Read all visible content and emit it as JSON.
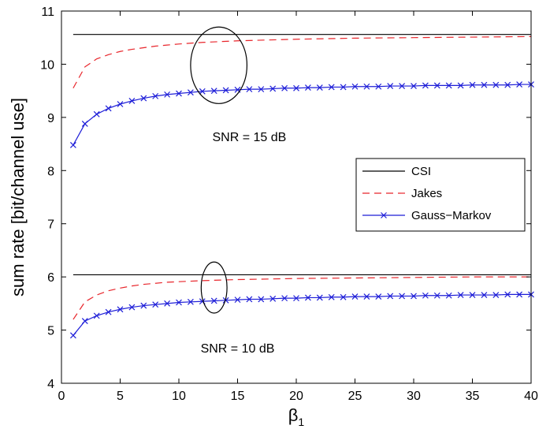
{
  "chart_data": {
    "type": "line",
    "title": "",
    "xlabel": "β",
    "xlabel_sub": "1",
    "ylabel": "sum rate [bit/channel use]",
    "xlim": [
      0,
      40
    ],
    "ylim": [
      4,
      11
    ],
    "xticks": [
      0,
      5,
      10,
      15,
      20,
      25,
      30,
      35,
      40
    ],
    "yticks": [
      4,
      5,
      6,
      7,
      8,
      9,
      10,
      11
    ],
    "grid": false,
    "legend_position": "right",
    "series": [
      {
        "name": "CSI",
        "color": "#000000",
        "style": "solid",
        "marker": "none",
        "x": [
          1,
          40
        ],
        "y": [
          10.56,
          10.56
        ]
      },
      {
        "name": "Jakes",
        "color": "#e8252b",
        "style": "dashed",
        "marker": "none",
        "x": [
          1,
          2,
          3,
          4,
          5,
          6,
          7,
          8,
          9,
          10,
          12,
          15,
          20,
          25,
          30,
          35,
          40
        ],
        "y": [
          9.55,
          9.95,
          10.1,
          10.18,
          10.24,
          10.28,
          10.31,
          10.34,
          10.36,
          10.38,
          10.41,
          10.44,
          10.47,
          10.49,
          10.5,
          10.51,
          10.52
        ]
      },
      {
        "name": "Gauss-Markov",
        "color": "#1f1fd8",
        "style": "solid",
        "marker": "x",
        "x": [
          1,
          2,
          3,
          4,
          5,
          6,
          7,
          8,
          9,
          10,
          11,
          12,
          13,
          14,
          15,
          16,
          17,
          18,
          19,
          20,
          21,
          22,
          23,
          24,
          25,
          26,
          27,
          28,
          29,
          30,
          31,
          32,
          33,
          34,
          35,
          36,
          37,
          38,
          39,
          40
        ],
        "y": [
          8.48,
          8.88,
          9.06,
          9.17,
          9.25,
          9.31,
          9.36,
          9.4,
          9.43,
          9.45,
          9.47,
          9.49,
          9.5,
          9.51,
          9.52,
          9.53,
          9.53,
          9.54,
          9.55,
          9.55,
          9.56,
          9.56,
          9.57,
          9.57,
          9.58,
          9.58,
          9.58,
          9.59,
          9.59,
          9.59,
          9.6,
          9.6,
          9.6,
          9.6,
          9.61,
          9.61,
          9.61,
          9.61,
          9.62,
          9.62
        ]
      },
      {
        "name": "CSI",
        "color": "#000000",
        "style": "solid",
        "marker": "none",
        "legend": false,
        "x": [
          1,
          40
        ],
        "y": [
          6.04,
          6.04
        ]
      },
      {
        "name": "Jakes",
        "color": "#e8252b",
        "style": "dashed",
        "marker": "none",
        "legend": false,
        "x": [
          1,
          2,
          3,
          4,
          5,
          6,
          7,
          8,
          9,
          10,
          12,
          15,
          20,
          25,
          30,
          35,
          40
        ],
        "y": [
          5.2,
          5.53,
          5.66,
          5.74,
          5.79,
          5.83,
          5.86,
          5.88,
          5.9,
          5.91,
          5.93,
          5.95,
          5.97,
          5.98,
          5.99,
          6.0,
          6.0
        ]
      },
      {
        "name": "Gauss-Markov",
        "color": "#1f1fd8",
        "style": "solid",
        "marker": "x",
        "legend": false,
        "x": [
          1,
          2,
          3,
          4,
          5,
          6,
          7,
          8,
          9,
          10,
          11,
          12,
          13,
          14,
          15,
          16,
          17,
          18,
          19,
          20,
          21,
          22,
          23,
          24,
          25,
          26,
          27,
          28,
          29,
          30,
          31,
          32,
          33,
          34,
          35,
          36,
          37,
          38,
          39,
          40
        ],
        "y": [
          4.9,
          5.17,
          5.27,
          5.34,
          5.39,
          5.43,
          5.46,
          5.48,
          5.5,
          5.52,
          5.53,
          5.54,
          5.55,
          5.56,
          5.57,
          5.58,
          5.58,
          5.59,
          5.6,
          5.6,
          5.61,
          5.61,
          5.62,
          5.62,
          5.63,
          5.63,
          5.63,
          5.64,
          5.64,
          5.64,
          5.65,
          5.65,
          5.65,
          5.66,
          5.66,
          5.66,
          5.66,
          5.67,
          5.67,
          5.67
        ]
      }
    ],
    "annotations": [
      {
        "text": "SNR = 15 dB",
        "x": 16.0,
        "y": 8.55
      },
      {
        "text": "SNR = 10 dB",
        "x": 15.0,
        "y": 4.58
      }
    ],
    "ellipses": [
      {
        "cx": 13.4,
        "cy": 9.98,
        "rx": 2.4,
        "ry": 0.72
      },
      {
        "cx": 13.0,
        "cy": 5.8,
        "rx": 1.1,
        "ry": 0.48
      }
    ],
    "legend_entries": [
      {
        "label": "CSI",
        "color": "#000000",
        "style": "solid",
        "marker": "none"
      },
      {
        "label": "Jakes",
        "color": "#e8252b",
        "style": "dashed",
        "marker": "none"
      },
      {
        "label": "Gauss−Markov",
        "color": "#1f1fd8",
        "style": "solid",
        "marker": "x"
      }
    ]
  }
}
